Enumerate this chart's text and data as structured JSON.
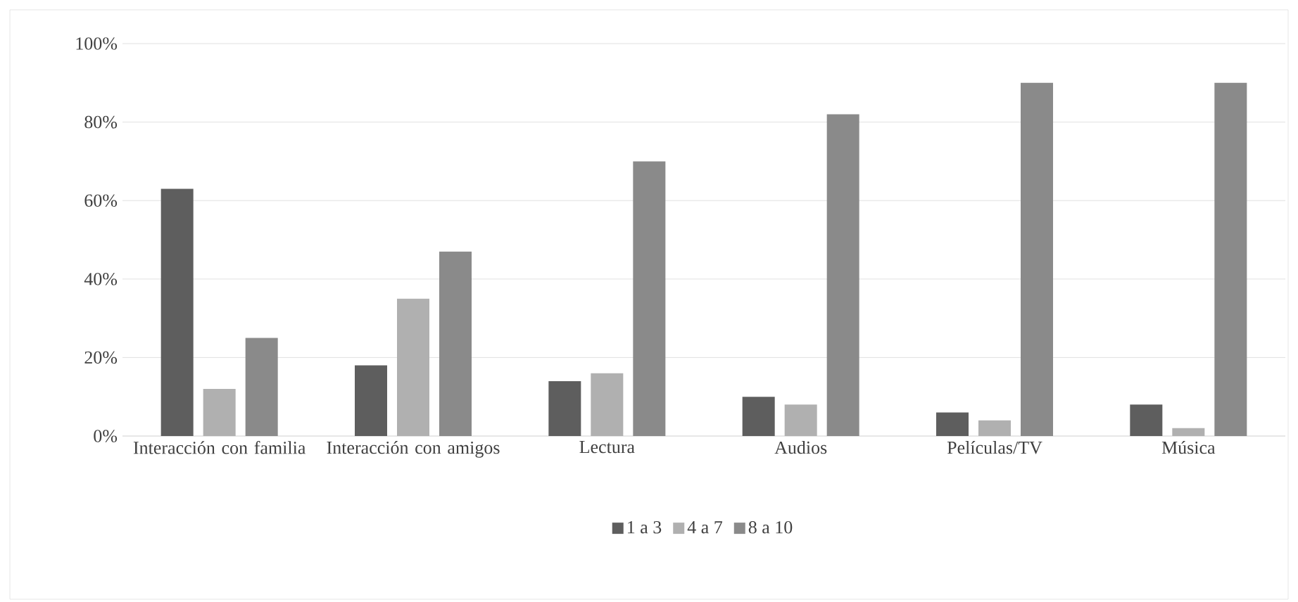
{
  "chart_data": {
    "type": "bar",
    "categories": [
      "Interacción con familia",
      "Interacción con amigos",
      "Lectura",
      "Audios",
      "Películas/TV",
      "Música"
    ],
    "series": [
      {
        "name": "1 a 3",
        "color": "#5e5e5e",
        "values": [
          63,
          18,
          14,
          10,
          6,
          8
        ]
      },
      {
        "name": "4 a 7",
        "color": "#b0b0b0",
        "values": [
          12,
          35,
          16,
          8,
          4,
          2
        ]
      },
      {
        "name": "8 a 10",
        "color": "#8a8a8a",
        "values": [
          25,
          47,
          70,
          82,
          90,
          90
        ]
      }
    ],
    "ylim": [
      0,
      100
    ],
    "yticks": [
      {
        "value": 0,
        "label": "0%"
      },
      {
        "value": 20,
        "label": "20%"
      },
      {
        "value": 40,
        "label": "40%"
      },
      {
        "value": 60,
        "label": "60%"
      },
      {
        "value": 80,
        "label": "80%"
      },
      {
        "value": 100,
        "label": "100%"
      }
    ],
    "grid": "y",
    "legend": "bottom"
  }
}
